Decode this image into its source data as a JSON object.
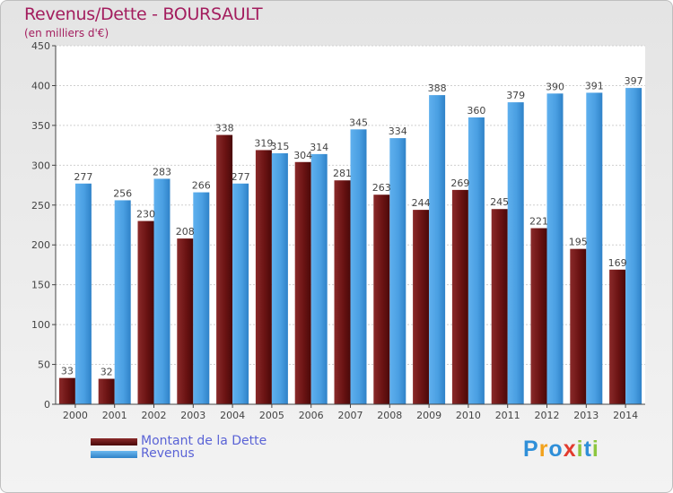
{
  "chart_data": {
    "type": "bar",
    "title": "Revenus/Dette - BOURSAULT",
    "subtitle": "(en milliers d'€)",
    "categories": [
      "2000",
      "2001",
      "2002",
      "2003",
      "2004",
      "2005",
      "2006",
      "2007",
      "2008",
      "2009",
      "2010",
      "2011",
      "2012",
      "2013",
      "2014"
    ],
    "series": [
      {
        "name": "Montant de la Dette",
        "color": "#6b1313",
        "values": [
          33,
          32,
          230,
          208,
          338,
          319,
          304,
          281,
          263,
          244,
          269,
          245,
          221,
          195,
          169
        ]
      },
      {
        "name": "Revenus",
        "color": "#4a9fe2",
        "values": [
          277,
          256,
          283,
          266,
          277,
          315,
          314,
          345,
          334,
          388,
          360,
          379,
          390,
          391,
          397
        ]
      }
    ],
    "yticks": [
      0,
      50,
      100,
      150,
      200,
      250,
      300,
      350,
      400,
      450
    ],
    "ylim": [
      0,
      450
    ],
    "grid": true,
    "legend": "bottom-left"
  },
  "brand": {
    "letters": [
      "P",
      "r",
      "o",
      "x",
      "i",
      "t",
      "i"
    ],
    "colors": [
      "#2f8fd8",
      "#f2a21c",
      "#2f8fd8",
      "#e23b2e",
      "#8cc63f",
      "#2f8fd8",
      "#8cc63f"
    ]
  }
}
